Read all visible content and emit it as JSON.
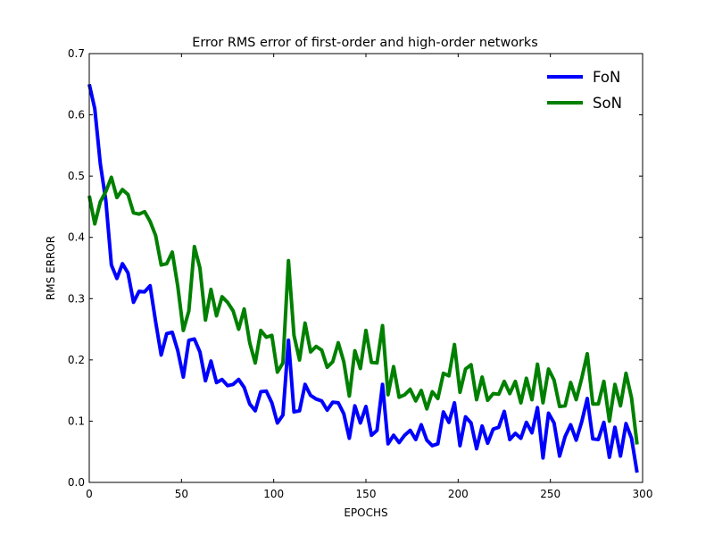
{
  "chart_data": {
    "type": "line",
    "title": "Error RMS error of first-order and high-order networks",
    "xlabel": "EPOCHS",
    "ylabel": "RMS ERROR",
    "xlim": [
      0,
      300
    ],
    "ylim": [
      0,
      0.7
    ],
    "xticks": [
      "0",
      "50",
      "100",
      "150",
      "200",
      "250",
      "300"
    ],
    "yticks": [
      "0.0",
      "0.1",
      "0.2",
      "0.3",
      "0.4",
      "0.5",
      "0.6",
      "0.7"
    ],
    "grid": false,
    "legend": "top-right",
    "x": [
      0,
      3,
      6,
      9,
      12,
      15,
      18,
      21,
      24,
      27,
      30,
      33,
      36,
      39,
      42,
      45,
      48,
      51,
      54,
      57,
      60,
      63,
      66,
      69,
      72,
      75,
      78,
      81,
      84,
      87,
      90,
      93,
      96,
      99,
      102,
      105,
      108,
      111,
      114,
      117,
      120,
      123,
      126,
      129,
      132,
      135,
      138,
      141,
      144,
      147,
      150,
      153,
      156,
      159,
      162,
      165,
      168,
      171,
      174,
      177,
      180,
      183,
      186,
      189,
      192,
      195,
      198,
      201,
      204,
      207,
      210,
      213,
      216,
      219,
      222,
      225,
      228,
      231,
      234,
      237,
      240,
      243,
      246,
      249,
      252,
      255,
      258,
      261,
      264,
      267,
      270,
      273,
      276,
      279,
      282,
      285,
      288,
      291,
      294,
      297
    ],
    "series": [
      {
        "name": "FoN",
        "color": "#0000ff",
        "values": [
          0.65,
          0.61,
          0.52,
          0.46,
          0.355,
          0.333,
          0.357,
          0.342,
          0.294,
          0.312,
          0.311,
          0.321,
          0.262,
          0.208,
          0.243,
          0.245,
          0.215,
          0.172,
          0.232,
          0.234,
          0.213,
          0.166,
          0.198,
          0.163,
          0.168,
          0.158,
          0.16,
          0.168,
          0.155,
          0.128,
          0.117,
          0.148,
          0.149,
          0.13,
          0.097,
          0.11,
          0.232,
          0.115,
          0.117,
          0.16,
          0.142,
          0.136,
          0.133,
          0.118,
          0.131,
          0.13,
          0.112,
          0.072,
          0.125,
          0.097,
          0.124,
          0.077,
          0.085,
          0.16,
          0.063,
          0.077,
          0.065,
          0.077,
          0.085,
          0.07,
          0.094,
          0.069,
          0.06,
          0.063,
          0.115,
          0.098,
          0.13,
          0.06,
          0.107,
          0.097,
          0.055,
          0.092,
          0.064,
          0.087,
          0.09,
          0.116,
          0.07,
          0.08,
          0.072,
          0.098,
          0.081,
          0.122,
          0.04,
          0.113,
          0.097,
          0.043,
          0.075,
          0.094,
          0.069,
          0.099,
          0.137,
          0.071,
          0.07,
          0.098,
          0.041,
          0.09,
          0.043,
          0.096,
          0.072,
          0.016
        ]
      },
      {
        "name": "SoN",
        "color": "#008000",
        "values": [
          0.468,
          0.422,
          0.458,
          0.475,
          0.498,
          0.465,
          0.478,
          0.47,
          0.44,
          0.438,
          0.442,
          0.426,
          0.403,
          0.355,
          0.357,
          0.376,
          0.32,
          0.248,
          0.28,
          0.385,
          0.35,
          0.265,
          0.315,
          0.272,
          0.303,
          0.294,
          0.28,
          0.25,
          0.283,
          0.228,
          0.195,
          0.248,
          0.237,
          0.24,
          0.18,
          0.195,
          0.362,
          0.24,
          0.2,
          0.26,
          0.213,
          0.222,
          0.216,
          0.188,
          0.197,
          0.228,
          0.197,
          0.141,
          0.215,
          0.186,
          0.248,
          0.196,
          0.195,
          0.256,
          0.143,
          0.189,
          0.139,
          0.143,
          0.152,
          0.133,
          0.15,
          0.12,
          0.148,
          0.137,
          0.178,
          0.174,
          0.225,
          0.147,
          0.185,
          0.192,
          0.135,
          0.172,
          0.134,
          0.145,
          0.144,
          0.165,
          0.145,
          0.165,
          0.13,
          0.17,
          0.135,
          0.193,
          0.13,
          0.185,
          0.167,
          0.124,
          0.125,
          0.163,
          0.135,
          0.17,
          0.21,
          0.128,
          0.128,
          0.165,
          0.1,
          0.16,
          0.125,
          0.178,
          0.138,
          0.062
        ]
      }
    ]
  }
}
